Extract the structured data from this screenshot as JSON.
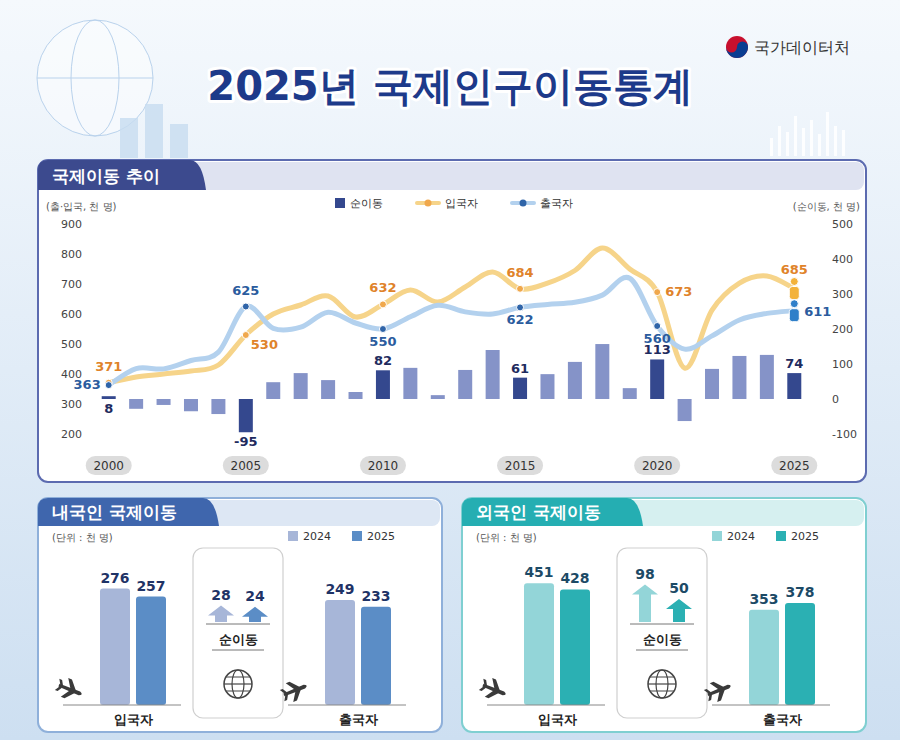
{
  "header": {
    "title": "2025년 국제인구이동통계",
    "source": "국가데이터처"
  },
  "chart_data": [
    {
      "type": "bar",
      "title": "국제이동 추이",
      "y_label": "(출·입국, 천 명)",
      "y2_label": "(순이동, 천 명)",
      "categories": [
        "2000",
        null,
        null,
        null,
        null,
        "2005",
        null,
        null,
        null,
        null,
        "2010",
        null,
        null,
        null,
        null,
        "2015",
        null,
        null,
        null,
        null,
        "2020",
        null,
        null,
        null,
        null,
        "2025"
      ],
      "ylim": [
        200,
        900
      ],
      "yticks": [
        200,
        300,
        400,
        500,
        600,
        700,
        800,
        900
      ],
      "y2lim": [
        -100,
        500
      ],
      "y2ticks": [
        -100,
        0,
        100,
        200,
        300,
        400,
        500
      ],
      "grid": false,
      "legend": "top",
      "data_labels": true,
      "series": [
        {
          "name": "순이동",
          "type": "bar",
          "axis": "y2",
          "color": "#34488e",
          "colors": [
            "#34488e",
            "#8593c8",
            "#8593c8",
            "#8593c8",
            "#8593c8",
            "#34488e",
            "#8593c8",
            "#8593c8",
            "#8593c8",
            "#8593c8",
            "#34488e",
            "#8593c8",
            "#8593c8",
            "#8593c8",
            "#8593c8",
            "#34488e",
            "#8593c8",
            "#8593c8",
            "#8593c8",
            "#8593c8",
            "#34488e",
            "#8593c8",
            "#8593c8",
            "#8593c8",
            "#8593c8",
            "#34488e"
          ],
          "values": [
            8,
            -28,
            -17,
            -35,
            -43,
            -95,
            48,
            74,
            54,
            20,
            82,
            89,
            11,
            83,
            140,
            61,
            71,
            106,
            157,
            31,
            113,
            -63,
            86,
            123,
            126,
            74
          ],
          "value_labels": [
            "8",
            null,
            null,
            null,
            null,
            "-95",
            null,
            null,
            null,
            null,
            "82",
            null,
            null,
            null,
            null,
            "61",
            null,
            null,
            null,
            null,
            "113",
            null,
            null,
            null,
            null,
            "74"
          ]
        },
        {
          "name": "입국자",
          "type": "line",
          "color": "#f6d48a",
          "marker": "circle",
          "values": [
            371,
            390,
            400,
            410,
            430,
            530,
            600,
            630,
            660,
            590,
            632,
            680,
            640,
            690,
            740,
            684,
            703,
            745,
            820,
            750,
            673,
            420,
            613,
            703,
            727,
            685
          ],
          "value_labels": [
            "371",
            null,
            null,
            null,
            null,
            "530",
            null,
            null,
            null,
            null,
            "632",
            null,
            null,
            null,
            null,
            "684",
            null,
            null,
            null,
            null,
            "673",
            null,
            null,
            null,
            null,
            "685"
          ]
        },
        {
          "name": "출국자",
          "type": "line",
          "color": "#b3d1ee",
          "marker": "circle",
          "values": [
            363,
            418,
            417,
            445,
            473,
            625,
            552,
            556,
            606,
            570,
            550,
            591,
            629,
            607,
            600,
            622,
            632,
            639,
            663,
            719,
            560,
            483,
            527,
            580,
            602,
            611
          ],
          "value_labels": [
            "363",
            null,
            null,
            null,
            null,
            "625",
            null,
            null,
            null,
            null,
            "550",
            null,
            null,
            null,
            null,
            "622",
            null,
            null,
            null,
            null,
            "560",
            null,
            null,
            null,
            null,
            "611"
          ]
        }
      ]
    },
    {
      "type": "bar",
      "title": "내국인 국제이동",
      "unit": "(단위 : 천 명)",
      "categories": [
        "입국자",
        "순이동",
        "출국자"
      ],
      "ylim": [
        0,
        320
      ],
      "tick_labels": "x",
      "legend": "top-right",
      "data_labels": true,
      "series": [
        {
          "name": "2024",
          "color": "#a7b6d8",
          "values": [
            276,
            28,
            249
          ]
        },
        {
          "name": "2025",
          "color": "#5b8dc6",
          "values": [
            257,
            24,
            233
          ]
        }
      ]
    },
    {
      "type": "bar",
      "title": "외국인 국제이동",
      "unit": "(단위 : 천 명)",
      "categories": [
        "입국자",
        "순이동",
        "출국자"
      ],
      "ylim": [
        0,
        500
      ],
      "tick_labels": "x",
      "legend": "top-right",
      "data_labels": true,
      "series": [
        {
          "name": "2024",
          "color": "#93d5d8",
          "values": [
            451,
            98,
            353
          ]
        },
        {
          "name": "2025",
          "color": "#2bb0b3",
          "values": [
            428,
            50,
            378
          ]
        }
      ]
    }
  ]
}
